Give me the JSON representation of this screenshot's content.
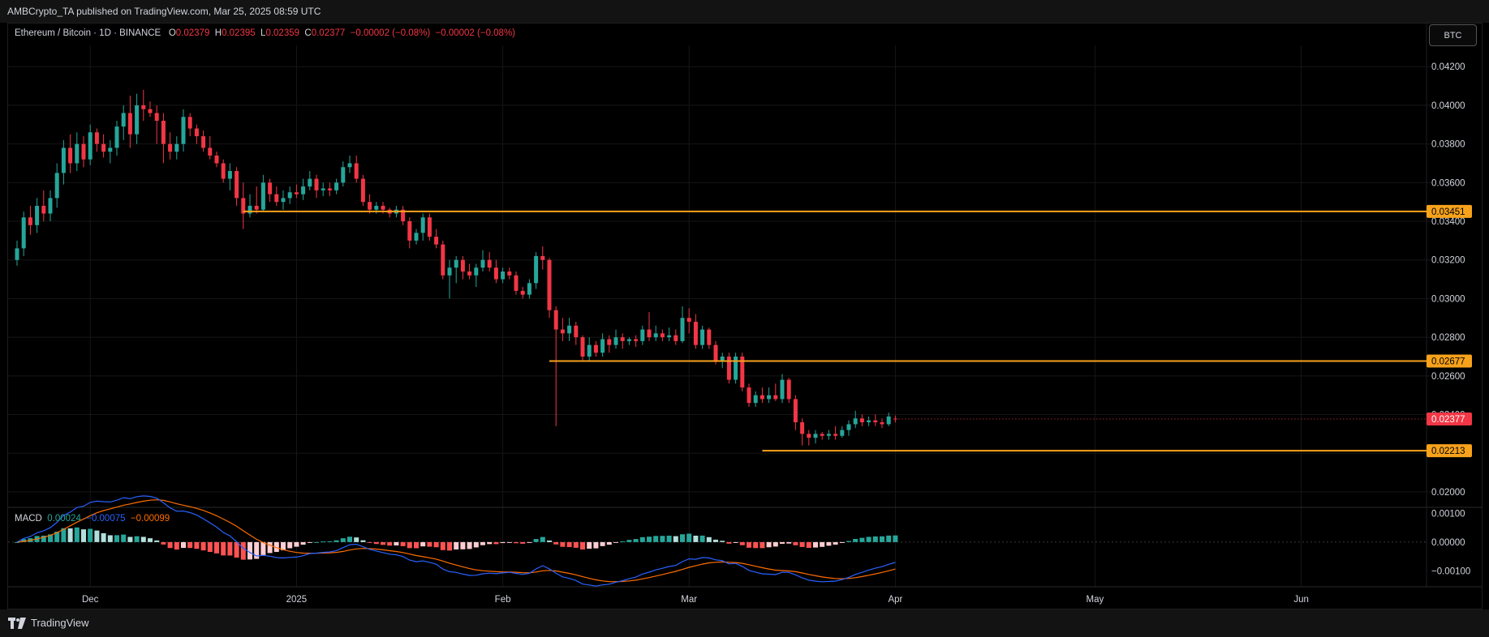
{
  "publisher_line": "AMBCrypto_TA published on TradingView.com, Mar 25, 2025 08:59 UTC",
  "legend": {
    "symbol": "Ethereum / Bitcoin · 1D · BINANCE",
    "o_label": "O",
    "o_value": "0.02379",
    "h_label": "H",
    "h_value": "0.02395",
    "l_label": "L",
    "l_value": "0.02359",
    "c_label": "C",
    "c_value": "0.02377",
    "change": "−0.00002 (−0.08%)",
    "change2": "−0.00002 (−0.08%)"
  },
  "currency_button": "BTC",
  "brand": "TradingView",
  "colors": {
    "up": "#26a69a",
    "down": "#f23645",
    "level": "#f7a21b",
    "macd_line": "#2962ff",
    "signal_line": "#ff6d00",
    "hist_up_strong": "#26a69a",
    "hist_up_weak": "#b2dfdb",
    "hist_down_strong": "#ff5252",
    "hist_down_weak": "#ffcdd2"
  },
  "chart_data": {
    "type": "candlestick",
    "symbol": "ETHBTC",
    "price_axis": {
      "ylim": [
        0.0192,
        0.0431
      ],
      "ticks": [
        "0.04200",
        "0.04000",
        "0.03800",
        "0.03600",
        "0.03400",
        "0.03200",
        "0.03000",
        "0.02800",
        "0.02600",
        "0.02400",
        "0.02200",
        "0.02000"
      ]
    },
    "x_axis": {
      "ticks": [
        "Dec",
        "2025",
        "Feb",
        "Mar",
        "Apr",
        "May",
        "Jun"
      ],
      "tick_dates": [
        "2024-12-01",
        "2025-01-01",
        "2025-02-01",
        "2025-03-01",
        "2025-04-01",
        "2025-05-01",
        "2025-06-01"
      ]
    },
    "levels": [
      {
        "price": 0.03451,
        "label": "0.03451",
        "from_date": "2024-12-24"
      },
      {
        "price": 0.02677,
        "label": "0.02677",
        "from_date": "2025-02-08"
      },
      {
        "price": 0.02213,
        "label": "0.02213",
        "from_date": "2025-03-12"
      }
    ],
    "last_price": {
      "price": 0.02377,
      "label": "0.02377"
    },
    "candles": {
      "start_date": "2024-11-20",
      "ohlc": [
        [
          0.032,
          0.033,
          0.0317,
          0.0326
        ],
        [
          0.0326,
          0.0345,
          0.0322,
          0.0342
        ],
        [
          0.0342,
          0.0348,
          0.0333,
          0.0338
        ],
        [
          0.0338,
          0.0352,
          0.0334,
          0.0348
        ],
        [
          0.0348,
          0.0356,
          0.034,
          0.0344
        ],
        [
          0.0344,
          0.0356,
          0.034,
          0.0352
        ],
        [
          0.0352,
          0.037,
          0.0347,
          0.0365
        ],
        [
          0.0365,
          0.0382,
          0.0359,
          0.0378
        ],
        [
          0.0378,
          0.0385,
          0.0365,
          0.037
        ],
        [
          0.037,
          0.0386,
          0.0366,
          0.038
        ],
        [
          0.038,
          0.0384,
          0.0368,
          0.0372
        ],
        [
          0.0372,
          0.039,
          0.0369,
          0.0386
        ],
        [
          0.0386,
          0.0388,
          0.0376,
          0.038
        ],
        [
          0.038,
          0.0385,
          0.0373,
          0.0376
        ],
        [
          0.0376,
          0.0382,
          0.037,
          0.0378
        ],
        [
          0.0378,
          0.0392,
          0.0374,
          0.0389
        ],
        [
          0.0389,
          0.04,
          0.0382,
          0.0396
        ],
        [
          0.0396,
          0.0405,
          0.0378,
          0.0385
        ],
        [
          0.0385,
          0.0406,
          0.038,
          0.04
        ],
        [
          0.04,
          0.0408,
          0.0392,
          0.0398
        ],
        [
          0.0398,
          0.0402,
          0.0394,
          0.0396
        ],
        [
          0.0396,
          0.04,
          0.038,
          0.0392
        ],
        [
          0.0392,
          0.0396,
          0.037,
          0.038
        ],
        [
          0.038,
          0.0386,
          0.0372,
          0.0376
        ],
        [
          0.0376,
          0.0384,
          0.0372,
          0.038
        ],
        [
          0.038,
          0.0398,
          0.0376,
          0.0394
        ],
        [
          0.0394,
          0.0396,
          0.0384,
          0.0388
        ],
        [
          0.0388,
          0.039,
          0.038,
          0.0384
        ],
        [
          0.0384,
          0.0387,
          0.0376,
          0.0378
        ],
        [
          0.0378,
          0.0384,
          0.0372,
          0.0374
        ],
        [
          0.0374,
          0.0376,
          0.0368,
          0.037
        ],
        [
          0.037,
          0.0372,
          0.036,
          0.0362
        ],
        [
          0.0362,
          0.037,
          0.0356,
          0.0366
        ],
        [
          0.0366,
          0.0368,
          0.0348,
          0.0352
        ],
        [
          0.0352,
          0.036,
          0.0336,
          0.0344
        ],
        [
          0.0344,
          0.0354,
          0.0342,
          0.0348
        ],
        [
          0.0348,
          0.0358,
          0.0344,
          0.0346
        ],
        [
          0.0346,
          0.0364,
          0.0345,
          0.036
        ],
        [
          0.036,
          0.0362,
          0.035,
          0.0354
        ],
        [
          0.0354,
          0.0358,
          0.0348,
          0.035
        ],
        [
          0.035,
          0.0356,
          0.0346,
          0.0352
        ],
        [
          0.0352,
          0.0358,
          0.0349,
          0.0355
        ],
        [
          0.0355,
          0.0359,
          0.0352,
          0.0354
        ],
        [
          0.0354,
          0.0362,
          0.0351,
          0.0358
        ],
        [
          0.0358,
          0.0366,
          0.0356,
          0.0362
        ],
        [
          0.0362,
          0.0364,
          0.0352,
          0.0356
        ],
        [
          0.0356,
          0.036,
          0.0353,
          0.0357
        ],
        [
          0.0357,
          0.036,
          0.0353,
          0.0356
        ],
        [
          0.0356,
          0.0362,
          0.0354,
          0.036
        ],
        [
          0.036,
          0.0371,
          0.0358,
          0.0368
        ],
        [
          0.0368,
          0.0374,
          0.0365,
          0.037
        ],
        [
          0.037,
          0.0374,
          0.036,
          0.0362
        ],
        [
          0.0362,
          0.0364,
          0.0348,
          0.035
        ],
        [
          0.035,
          0.0354,
          0.0344,
          0.0346
        ],
        [
          0.0346,
          0.035,
          0.0344,
          0.0348
        ],
        [
          0.0348,
          0.035,
          0.0344,
          0.0346
        ],
        [
          0.0346,
          0.0347,
          0.0342,
          0.0344
        ],
        [
          0.0344,
          0.0348,
          0.0342,
          0.0346
        ],
        [
          0.0346,
          0.0348,
          0.0338,
          0.034
        ],
        [
          0.034,
          0.0342,
          0.0326,
          0.033
        ],
        [
          0.033,
          0.0336,
          0.0328,
          0.0334
        ],
        [
          0.0334,
          0.0344,
          0.033,
          0.0342
        ],
        [
          0.0342,
          0.0344,
          0.033,
          0.0332
        ],
        [
          0.0332,
          0.0336,
          0.0326,
          0.0328
        ],
        [
          0.0328,
          0.033,
          0.031,
          0.0312
        ],
        [
          0.0312,
          0.032,
          0.03,
          0.0316
        ],
        [
          0.0316,
          0.0322,
          0.0308,
          0.032
        ],
        [
          0.032,
          0.0322,
          0.031,
          0.0314
        ],
        [
          0.0314,
          0.0318,
          0.031,
          0.0312
        ],
        [
          0.0312,
          0.0318,
          0.0306,
          0.0316
        ],
        [
          0.0316,
          0.0325,
          0.0314,
          0.032
        ],
        [
          0.032,
          0.0324,
          0.0314,
          0.0316
        ],
        [
          0.0316,
          0.032,
          0.0308,
          0.031
        ],
        [
          0.031,
          0.0316,
          0.0308,
          0.0314
        ],
        [
          0.0314,
          0.0316,
          0.031,
          0.0312
        ],
        [
          0.0312,
          0.0314,
          0.0302,
          0.0304
        ],
        [
          0.0304,
          0.0306,
          0.03,
          0.0302
        ],
        [
          0.0302,
          0.031,
          0.03,
          0.0308
        ],
        [
          0.0308,
          0.0324,
          0.0305,
          0.0322
        ],
        [
          0.0322,
          0.0327,
          0.0315,
          0.032
        ],
        [
          0.032,
          0.0321,
          0.029,
          0.0294
        ],
        [
          0.0294,
          0.0296,
          0.0234,
          0.0284
        ],
        [
          0.0284,
          0.029,
          0.0278,
          0.0282
        ],
        [
          0.0282,
          0.029,
          0.0278,
          0.0286
        ],
        [
          0.0286,
          0.0288,
          0.0276,
          0.028
        ],
        [
          0.028,
          0.0281,
          0.0268,
          0.027
        ],
        [
          0.027,
          0.028,
          0.0268,
          0.0276
        ],
        [
          0.0276,
          0.0278,
          0.027,
          0.0272
        ],
        [
          0.0272,
          0.0282,
          0.027,
          0.0279
        ],
        [
          0.0279,
          0.0281,
          0.0272,
          0.0276
        ],
        [
          0.0276,
          0.0284,
          0.0274,
          0.028
        ],
        [
          0.028,
          0.0282,
          0.0274,
          0.0278
        ],
        [
          0.0278,
          0.028,
          0.0276,
          0.0279
        ],
        [
          0.0279,
          0.0281,
          0.0275,
          0.0278
        ],
        [
          0.0278,
          0.0286,
          0.0276,
          0.0284
        ],
        [
          0.0284,
          0.0293,
          0.0278,
          0.028
        ],
        [
          0.028,
          0.0286,
          0.0278,
          0.0282
        ],
        [
          0.0282,
          0.0284,
          0.0278,
          0.028
        ],
        [
          0.028,
          0.0285,
          0.0278,
          0.0281
        ],
        [
          0.0281,
          0.0284,
          0.0276,
          0.0278
        ],
        [
          0.0278,
          0.0296,
          0.0277,
          0.029
        ],
        [
          0.029,
          0.0295,
          0.0282,
          0.0288
        ],
        [
          0.0288,
          0.0292,
          0.0274,
          0.0276
        ],
        [
          0.0276,
          0.0286,
          0.0274,
          0.0284
        ],
        [
          0.0284,
          0.0285,
          0.0274,
          0.0276
        ],
        [
          0.0276,
          0.0278,
          0.0266,
          0.0268
        ],
        [
          0.0268,
          0.0272,
          0.0264,
          0.027
        ],
        [
          0.027,
          0.0272,
          0.0256,
          0.0258
        ],
        [
          0.0258,
          0.0272,
          0.0256,
          0.027
        ],
        [
          0.027,
          0.0272,
          0.0252,
          0.0254
        ],
        [
          0.0254,
          0.0256,
          0.0244,
          0.0246
        ],
        [
          0.0246,
          0.0252,
          0.0244,
          0.025
        ],
        [
          0.025,
          0.0254,
          0.0246,
          0.0248
        ],
        [
          0.0248,
          0.0254,
          0.0246,
          0.025
        ],
        [
          0.025,
          0.0256,
          0.0247,
          0.0248
        ],
        [
          0.0248,
          0.0261,
          0.0246,
          0.0258
        ],
        [
          0.0258,
          0.0259,
          0.0246,
          0.0248
        ],
        [
          0.0248,
          0.025,
          0.0232,
          0.0236
        ],
        [
          0.0236,
          0.0238,
          0.0224,
          0.023
        ],
        [
          0.023,
          0.0232,
          0.0224,
          0.0228
        ],
        [
          0.0228,
          0.0232,
          0.0225,
          0.023
        ],
        [
          0.023,
          0.0231,
          0.0227,
          0.0229
        ],
        [
          0.0229,
          0.0232,
          0.0227,
          0.023
        ],
        [
          0.023,
          0.0234,
          0.0227,
          0.0229
        ],
        [
          0.0229,
          0.0234,
          0.0228,
          0.0232
        ],
        [
          0.0232,
          0.0237,
          0.0229,
          0.0235
        ],
        [
          0.0235,
          0.0242,
          0.0233,
          0.0238
        ],
        [
          0.0238,
          0.024,
          0.0234,
          0.0236
        ],
        [
          0.0236,
          0.0239,
          0.0234,
          0.0237
        ],
        [
          0.0237,
          0.024,
          0.0234,
          0.0236
        ],
        [
          0.0236,
          0.0238,
          0.0233,
          0.0235
        ],
        [
          0.0235,
          0.0241,
          0.0234,
          0.0239
        ],
        [
          0.02379,
          0.02395,
          0.02359,
          0.02377
        ]
      ]
    },
    "macd": {
      "legend": {
        "label": "MACD",
        "hist": "0.00024",
        "macd": "−0.00075",
        "signal": "−0.00099"
      },
      "axis_ticks": [
        "0.00100",
        "0.00000",
        "−0.00100"
      ],
      "ylim": [
        -0.00155,
        0.00115
      ]
    }
  }
}
